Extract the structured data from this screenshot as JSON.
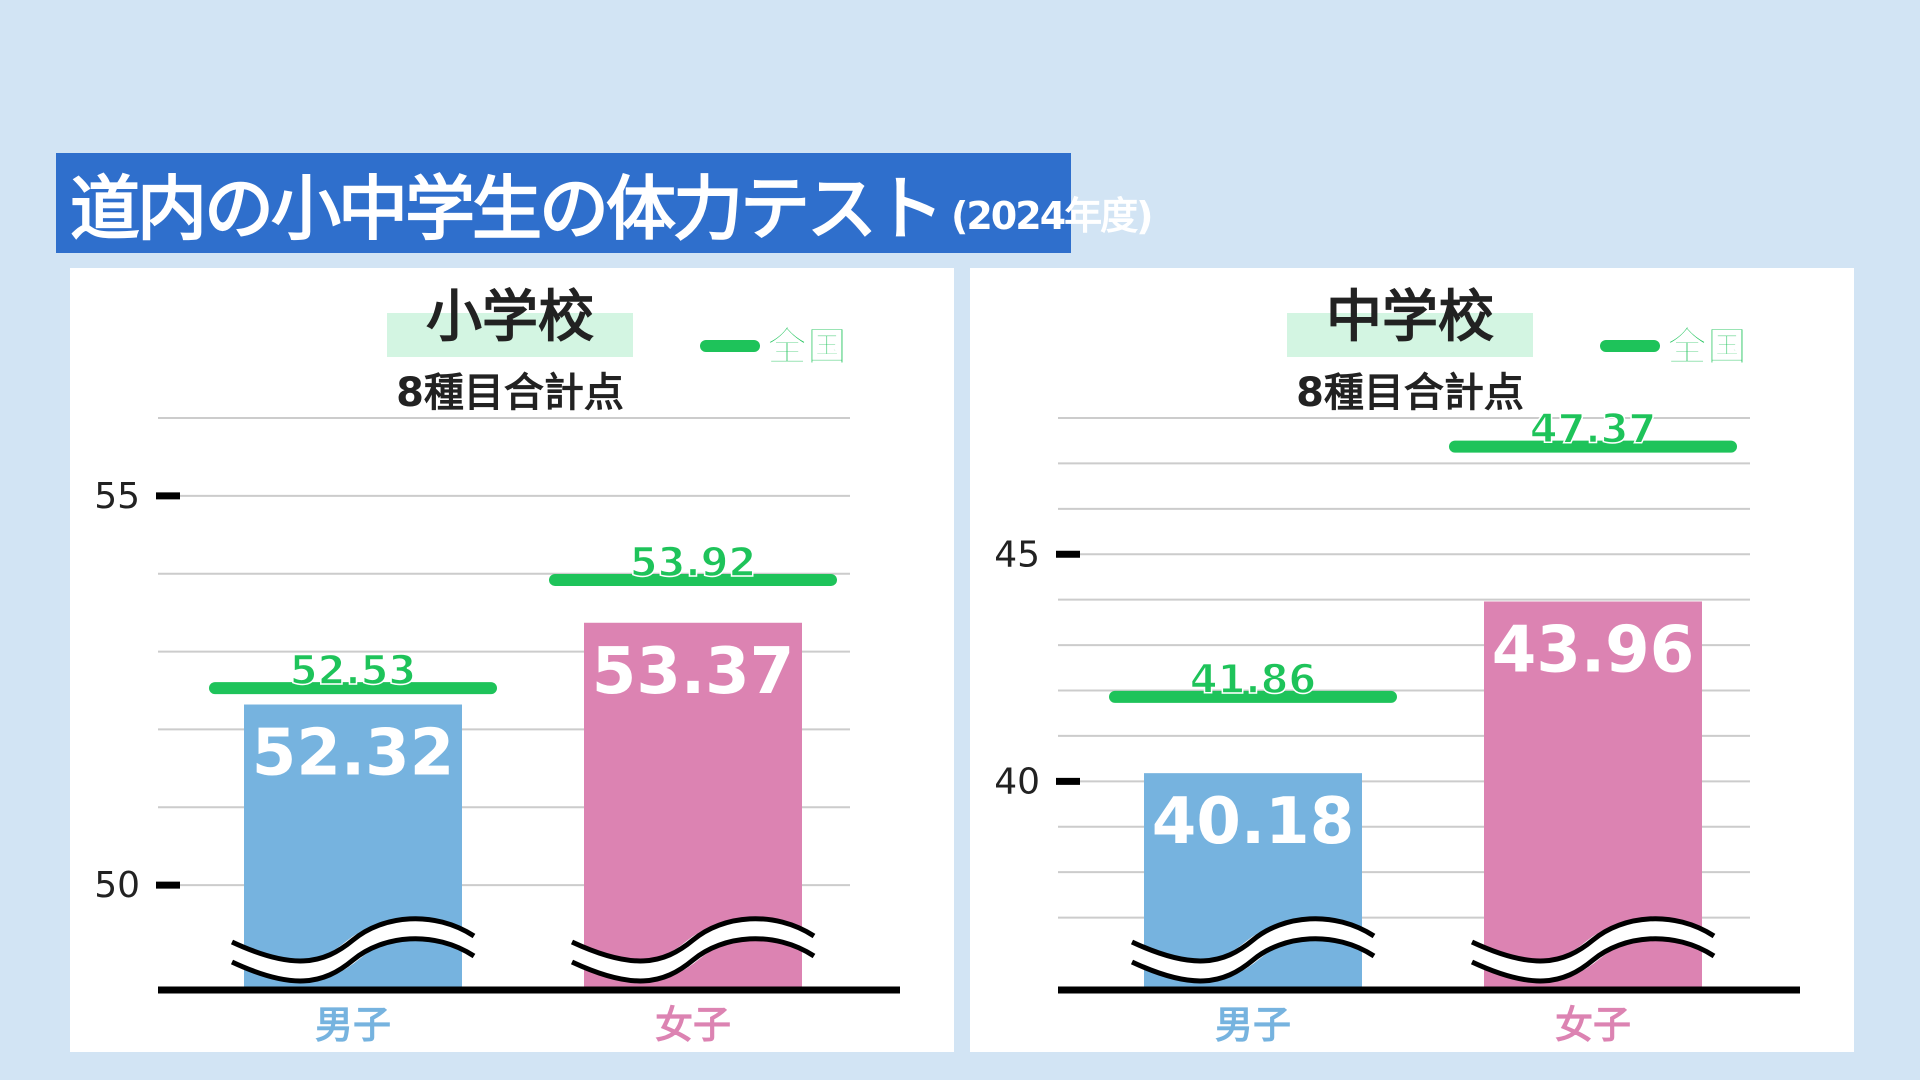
{
  "title": {
    "main": "道内の小中学生の体力テスト",
    "sub": "(2024年度)"
  },
  "colors": {
    "background": "#d2e4f4",
    "banner": "#2f6fcc",
    "boys": "#76b3df",
    "girls": "#dc83b2",
    "national": "#1ec35a",
    "heading_highlight": "#d3f5e2",
    "axis": "#000000",
    "gridline": "#cccccc"
  },
  "chart_data": [
    {
      "type": "bar",
      "title": "小学校",
      "subtitle": "8種目合計点",
      "legend": {
        "label": "全国",
        "placement": "top-right"
      },
      "categories": [
        "男子",
        "女子"
      ],
      "series": [
        {
          "values": [
            52.32,
            53.37
          ]
        },
        {
          "name": "全国",
          "values": [
            52.53,
            53.92
          ]
        }
      ],
      "value_labels": [
        "52.32",
        "53.37"
      ],
      "national_labels": [
        "52.53",
        "53.92"
      ],
      "yticks": [
        50,
        55
      ],
      "ytick_labels": [
        "50",
        "55"
      ],
      "ylim": [
        49,
        56
      ],
      "axis_break": true,
      "grid": true
    },
    {
      "type": "bar",
      "title": "中学校",
      "subtitle": "8種目合計点",
      "legend": {
        "label": "全国",
        "placement": "top-right"
      },
      "categories": [
        "男子",
        "女子"
      ],
      "series": [
        {
          "values": [
            40.18,
            43.96
          ]
        },
        {
          "name": "全国",
          "values": [
            41.86,
            47.37
          ]
        }
      ],
      "value_labels": [
        "40.18",
        "43.96"
      ],
      "national_labels": [
        "41.86",
        "47.37"
      ],
      "yticks": [
        40,
        45
      ],
      "ytick_labels": [
        "40",
        "45"
      ],
      "ylim": [
        36,
        48
      ],
      "axis_break": true,
      "grid": true
    }
  ]
}
